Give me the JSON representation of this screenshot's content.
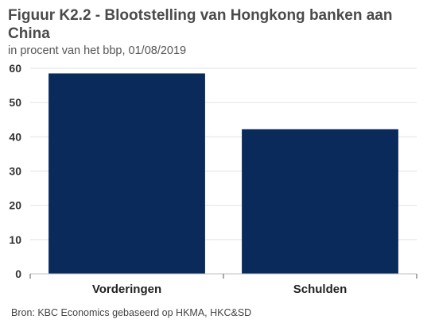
{
  "chart_data": {
    "type": "bar",
    "title": "Figuur K2.2 - Blootstelling van Hongkong banken aan China",
    "subtitle": "in procent van het bbp, 01/08/2019",
    "categories": [
      "Vorderingen",
      "Schulden"
    ],
    "values": [
      58.5,
      42.2
    ],
    "ylim": [
      0,
      60
    ],
    "yticks": [
      "0",
      "10",
      "20",
      "30",
      "40",
      "50",
      "60"
    ],
    "xlabel": "",
    "ylabel": "",
    "grid": true,
    "bar_color": "#0a2a5c",
    "source": "Bron: KBC Economics gebaseerd op HKMA, HKC&SD"
  }
}
